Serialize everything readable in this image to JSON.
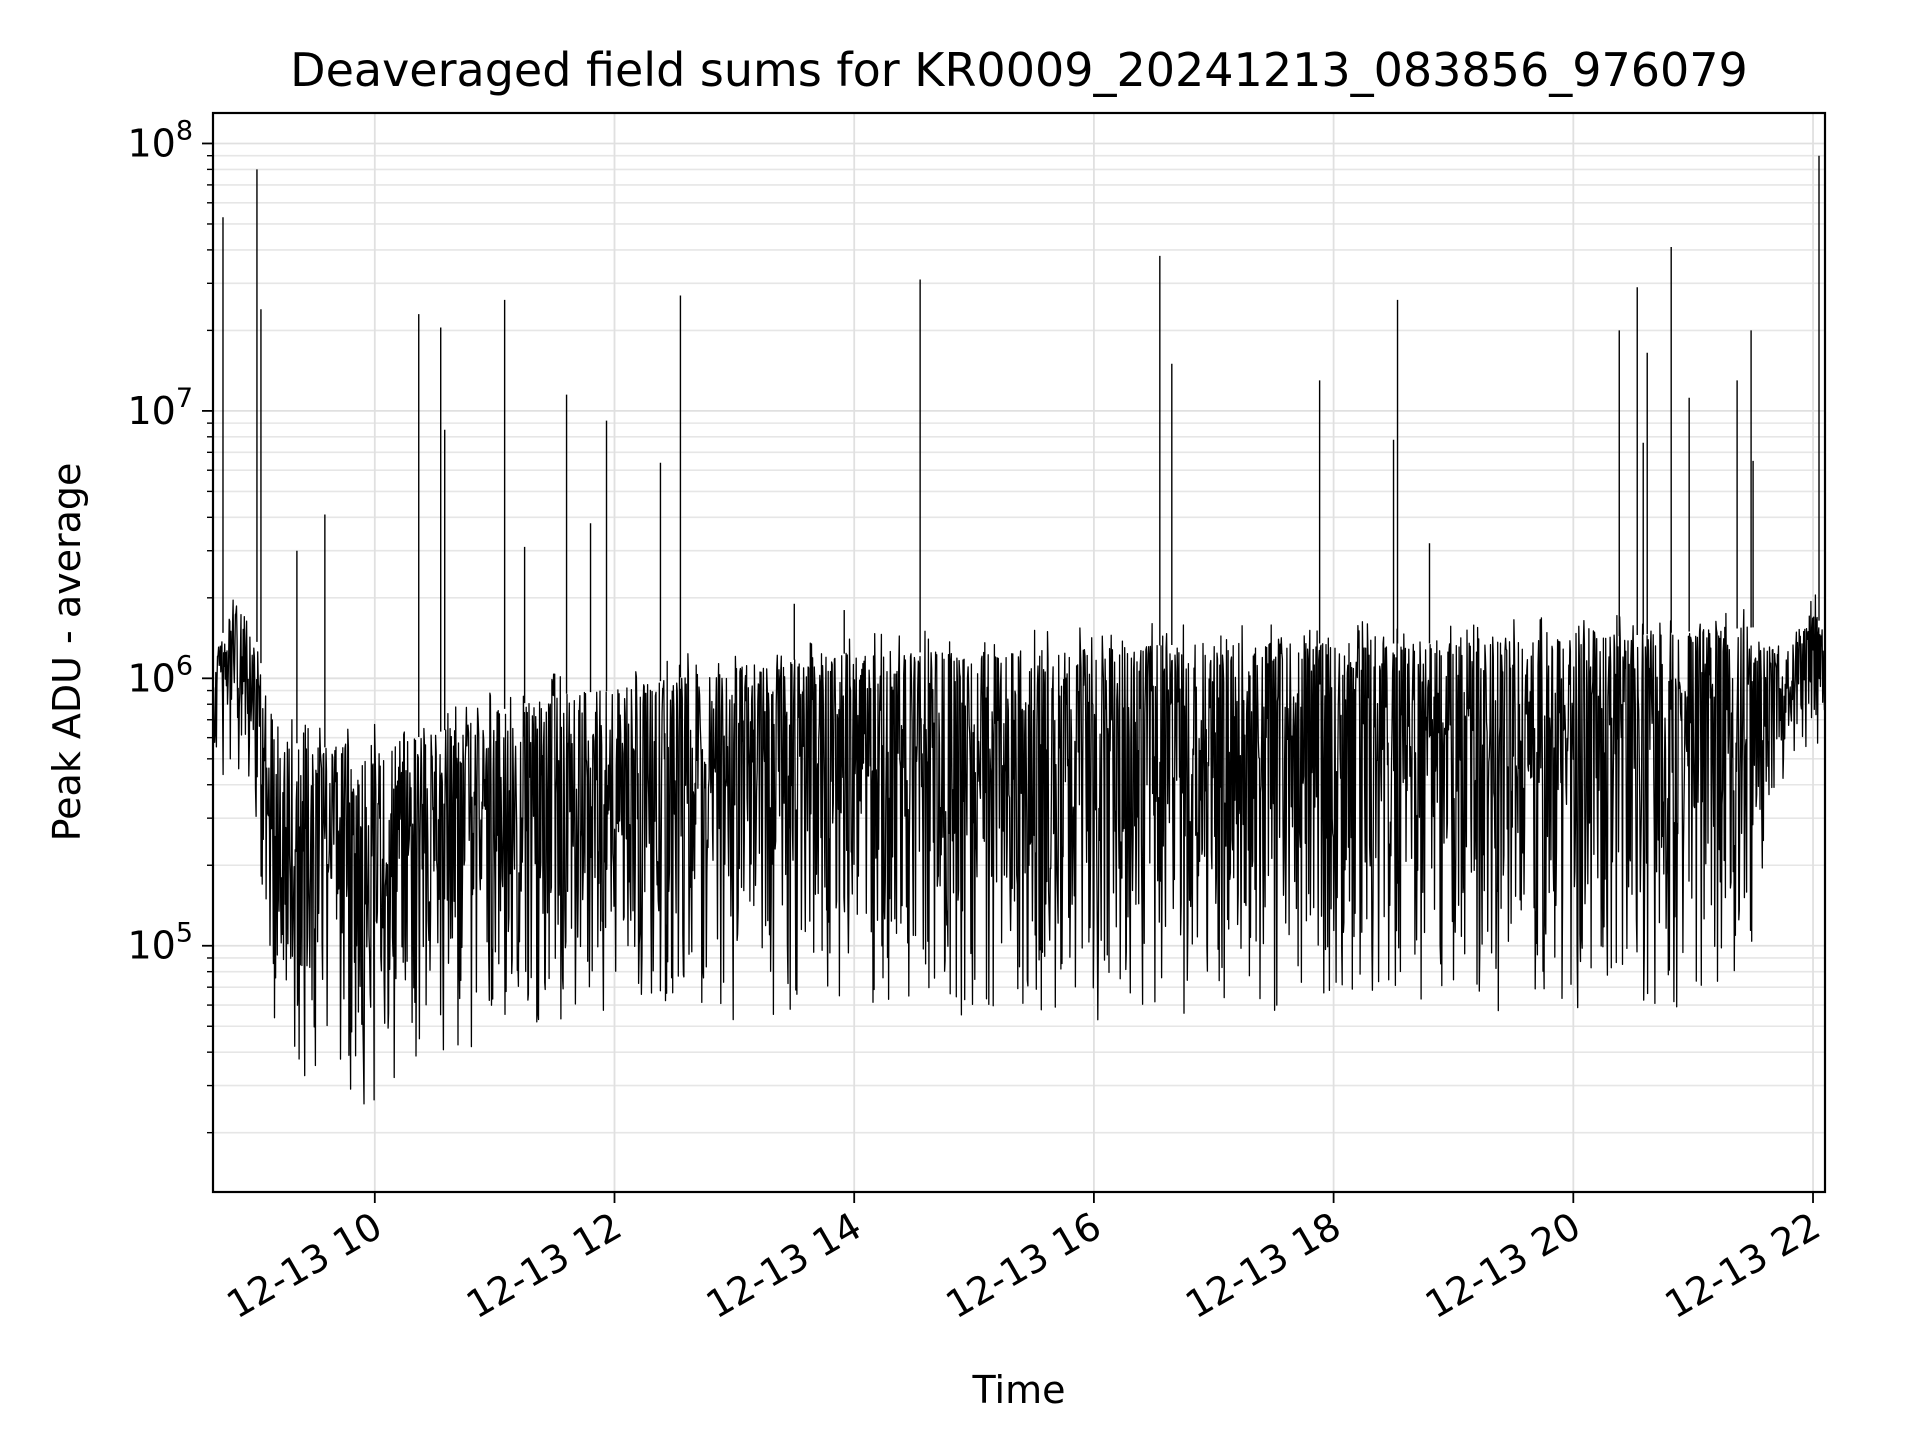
{
  "chart_data": {
    "type": "line",
    "title": "Deaveraged field sums for KR0009_20241213_083856_976079",
    "xlabel": "Time",
    "ylabel": "Peak ADU - average",
    "x_ticks": [
      "12-13 10",
      "12-13 12",
      "12-13 14",
      "12-13 16",
      "12-13 18",
      "12-13 20",
      "12-13 22"
    ],
    "y_ticks": [
      {
        "base": "10",
        "exp": "5",
        "value": 100000
      },
      {
        "base": "10",
        "exp": "6",
        "value": 1000000
      },
      {
        "base": "10",
        "exp": "7",
        "value": 10000000
      },
      {
        "base": "10",
        "exp": "8",
        "value": 100000000
      }
    ],
    "y_scale": "log",
    "xlim": [
      "2024-12-13 08:39",
      "2024-12-13 22:06"
    ],
    "ylim": [
      12000,
      130000000
    ],
    "grid": true,
    "line_color": "#000000",
    "series": [
      {
        "upper_envelope": [
          [
            "2024-12-13 08:39",
            1200000
          ],
          [
            "2024-12-13 08:50",
            1900000
          ],
          [
            "2024-12-13 09:00",
            1500000
          ],
          [
            "2024-12-13 09:10",
            600000
          ],
          [
            "2024-12-13 09:30",
            550000
          ],
          [
            "2024-12-13 10:00",
            560000
          ],
          [
            "2024-12-13 10:30",
            620000
          ],
          [
            "2024-12-13 11:00",
            750000
          ],
          [
            "2024-12-13 11:30",
            870000
          ],
          [
            "2024-12-13 12:00",
            900000
          ],
          [
            "2024-12-13 12:30",
            1000000
          ],
          [
            "2024-12-13 13:00",
            1100000
          ],
          [
            "2024-12-13 14:00",
            1250000
          ],
          [
            "2024-12-13 15:00",
            1250000
          ],
          [
            "2024-12-13 16:00",
            1300000
          ],
          [
            "2024-12-13 17:00",
            1350000
          ],
          [
            "2024-12-13 18:00",
            1350000
          ],
          [
            "2024-12-13 19:00",
            1350000
          ],
          [
            "2024-12-13 20:00",
            1400000
          ],
          [
            "2024-12-13 21:00",
            1500000
          ],
          [
            "2024-12-13 21:30",
            1550000
          ],
          [
            "2024-12-13 21:45",
            1300000
          ],
          [
            "2024-12-13 22:00",
            1800000
          ],
          [
            "2024-12-13 22:06",
            1500000
          ]
        ],
        "lower_envelope": [
          [
            "2024-12-13 08:39",
            350000
          ],
          [
            "2024-12-13 08:50",
            500000
          ],
          [
            "2024-12-13 09:00",
            300000
          ],
          [
            "2024-12-13 09:10",
            50000
          ],
          [
            "2024-12-13 09:30",
            27000
          ],
          [
            "2024-12-13 10:00",
            25000
          ],
          [
            "2024-12-13 10:30",
            32000
          ],
          [
            "2024-12-13 11:00",
            40000
          ],
          [
            "2024-12-13 11:30",
            48000
          ],
          [
            "2024-12-13 12:00",
            55000
          ],
          [
            "2024-12-13 12:30",
            58000
          ],
          [
            "2024-12-13 13:00",
            52000
          ],
          [
            "2024-12-13 14:00",
            55000
          ],
          [
            "2024-12-13 15:00",
            52000
          ],
          [
            "2024-12-13 16:00",
            52000
          ],
          [
            "2024-12-13 17:00",
            55000
          ],
          [
            "2024-12-13 18:00",
            55000
          ],
          [
            "2024-12-13 19:00",
            55000
          ],
          [
            "2024-12-13 20:00",
            58000
          ],
          [
            "2024-12-13 21:00",
            55000
          ],
          [
            "2024-12-13 21:30",
            90000
          ],
          [
            "2024-12-13 21:45",
            400000
          ],
          [
            "2024-12-13 22:00",
            600000
          ],
          [
            "2024-12-13 22:06",
            350000
          ]
        ],
        "spikes": [
          [
            "2024-12-13 08:44",
            53000000
          ],
          [
            "2024-12-13 09:01",
            80000000
          ],
          [
            "2024-12-13 09:03",
            24000000
          ],
          [
            "2024-12-13 09:21",
            3000000
          ],
          [
            "2024-12-13 09:35",
            4100000
          ],
          [
            "2024-12-13 10:22",
            23000000
          ],
          [
            "2024-12-13 10:33",
            20500000
          ],
          [
            "2024-12-13 10:35",
            8500000
          ],
          [
            "2024-12-13 11:05",
            26000000
          ],
          [
            "2024-12-13 11:15",
            3100000
          ],
          [
            "2024-12-13 11:36",
            11500000
          ],
          [
            "2024-12-13 11:48",
            3800000
          ],
          [
            "2024-12-13 11:56",
            9200000
          ],
          [
            "2024-12-13 12:23",
            6400000
          ],
          [
            "2024-12-13 12:33",
            27000000
          ],
          [
            "2024-12-13 13:30",
            1900000
          ],
          [
            "2024-12-13 13:55",
            1800000
          ],
          [
            "2024-12-13 14:33",
            31000000
          ],
          [
            "2024-12-13 16:33",
            38000000
          ],
          [
            "2024-12-13 16:39",
            15000000
          ],
          [
            "2024-12-13 17:53",
            13000000
          ],
          [
            "2024-12-13 18:30",
            7800000
          ],
          [
            "2024-12-13 18:32",
            26000000
          ],
          [
            "2024-12-13 18:48",
            3200000
          ],
          [
            "2024-12-13 20:23",
            20000000
          ],
          [
            "2024-12-13 20:32",
            29000000
          ],
          [
            "2024-12-13 20:35",
            7600000
          ],
          [
            "2024-12-13 20:37",
            16500000
          ],
          [
            "2024-12-13 20:49",
            41000000
          ],
          [
            "2024-12-13 20:58",
            11200000
          ],
          [
            "2024-12-13 21:22",
            13000000
          ],
          [
            "2024-12-13 21:29",
            20000000
          ],
          [
            "2024-12-13 21:30",
            6500000
          ],
          [
            "2024-12-13 22:03",
            90000000
          ]
        ]
      }
    ]
  }
}
